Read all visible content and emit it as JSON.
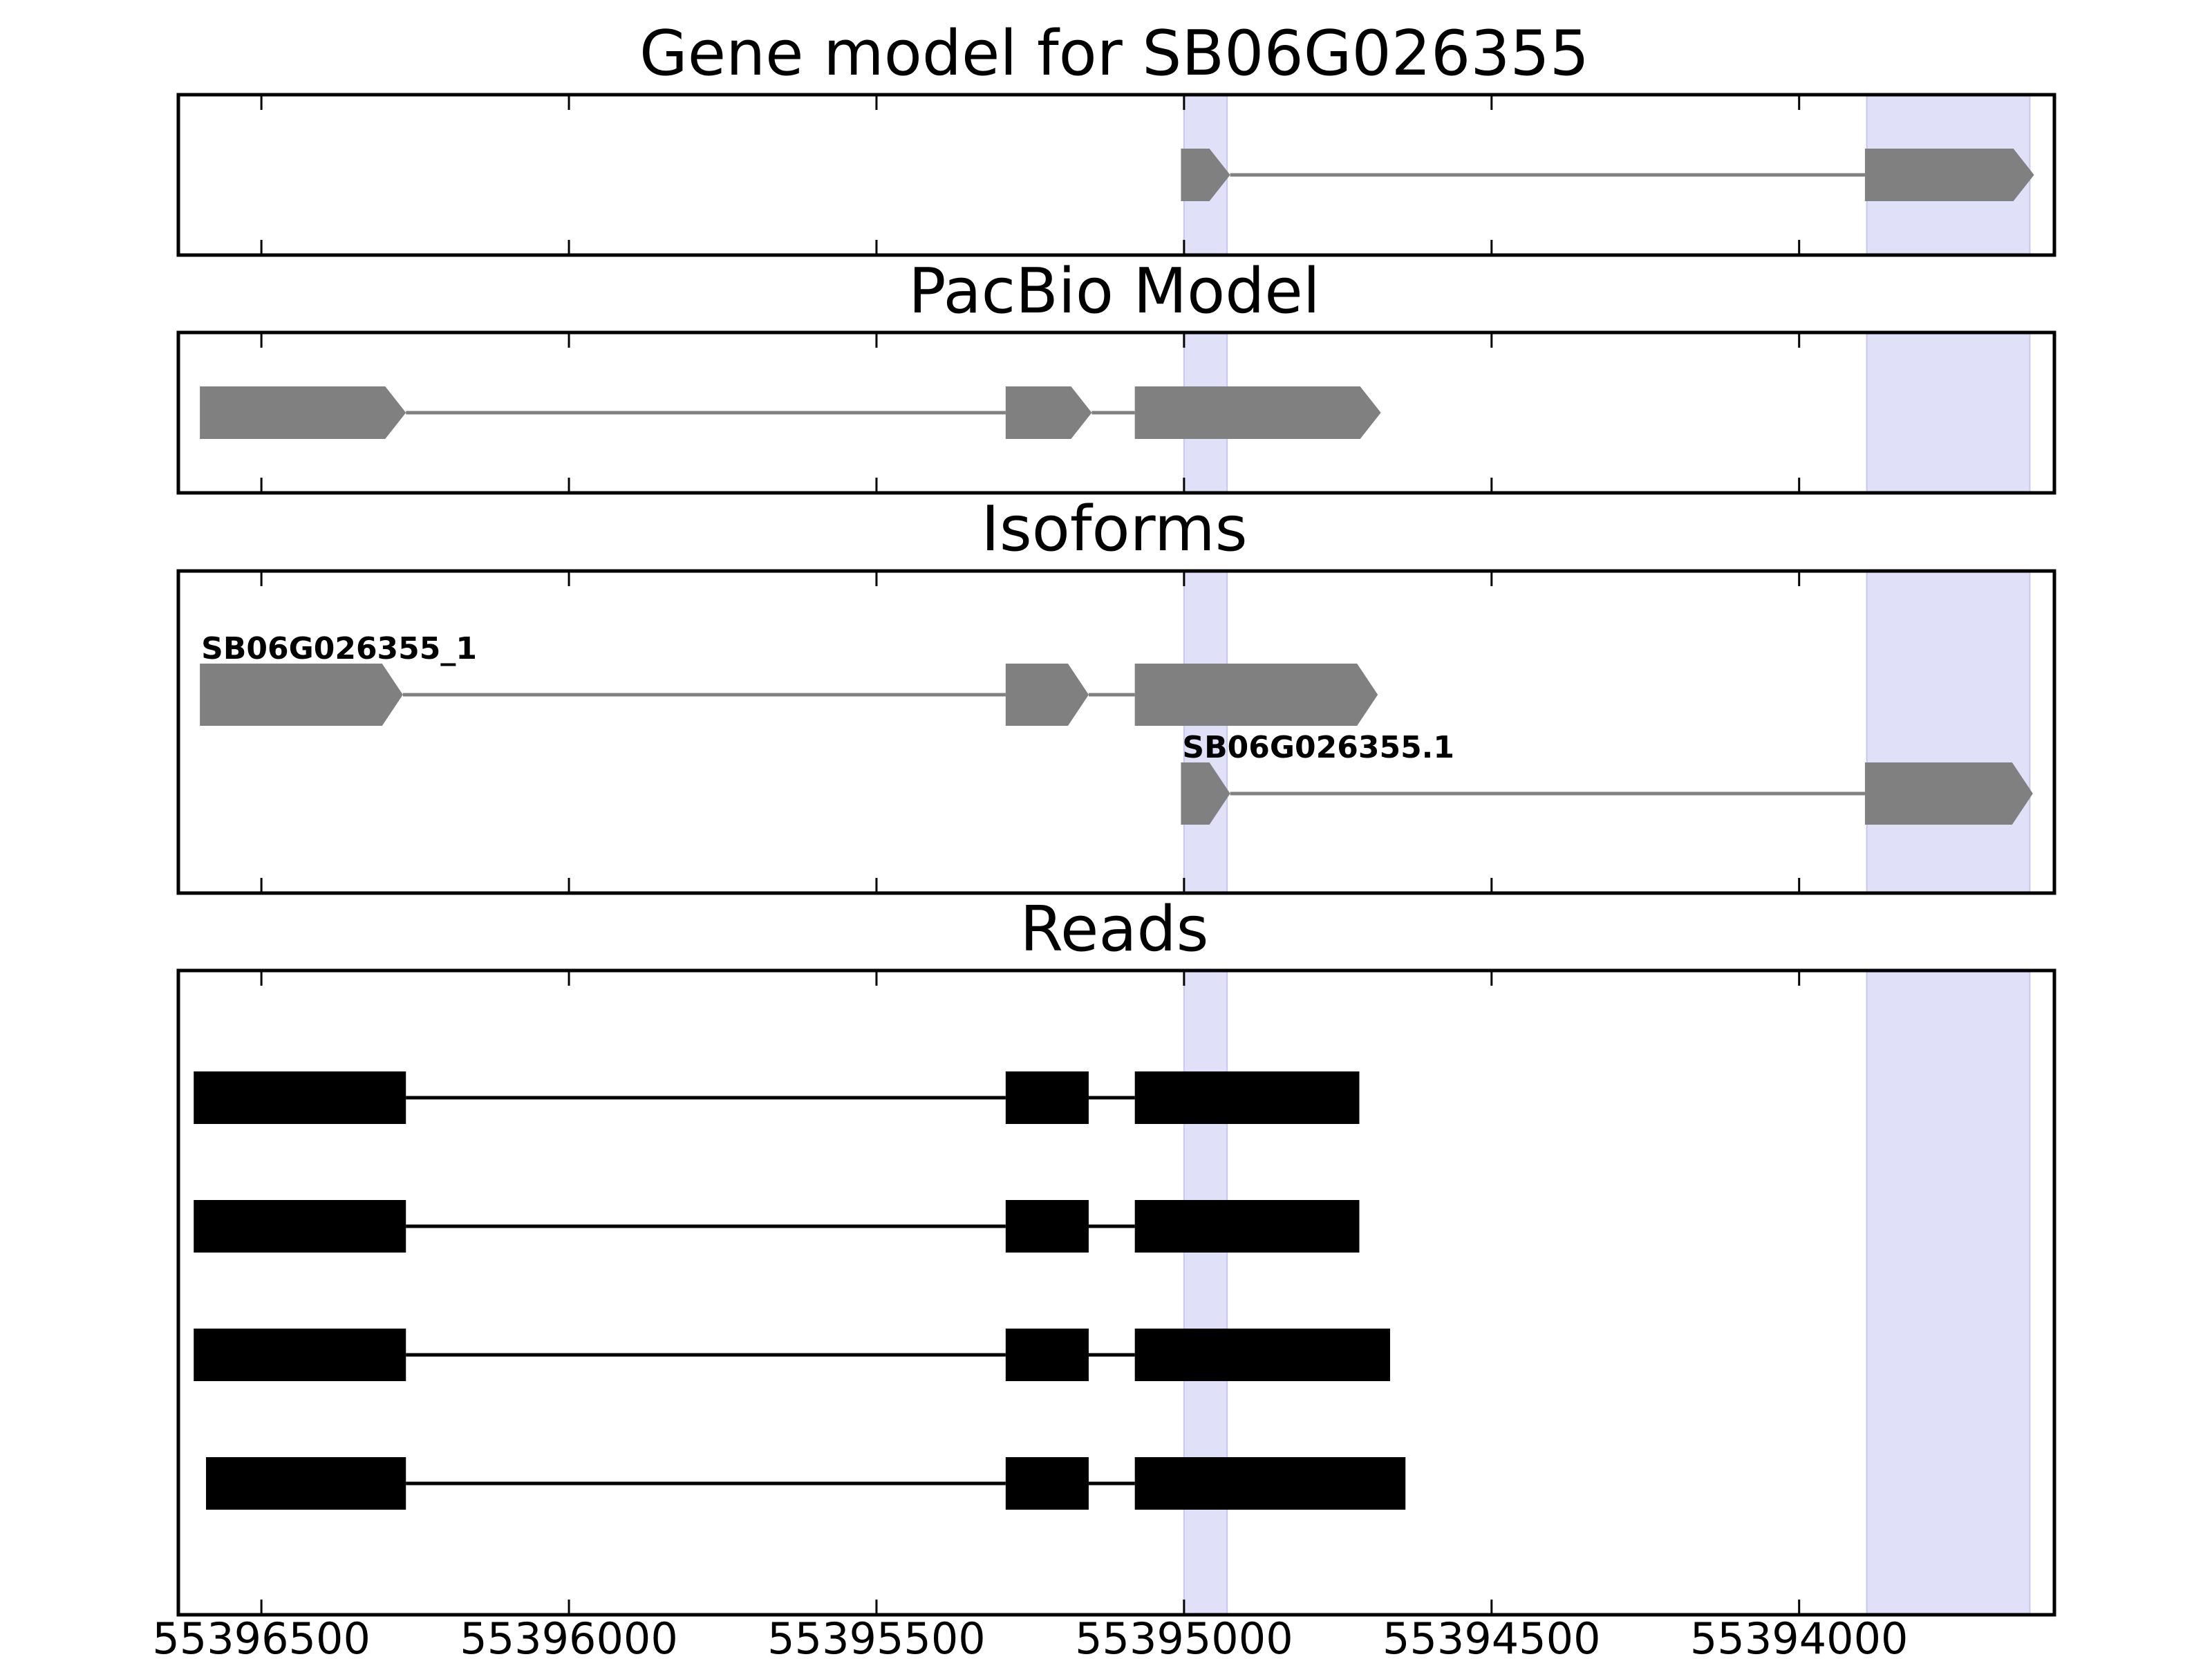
{
  "chart_data": {
    "type": "gene_structure",
    "x_axis": {
      "reversed": true,
      "range": [
        55396635,
        55393585
      ],
      "ticks": [
        55396500,
        55396000,
        55395500,
        55395000,
        55394500,
        55394000
      ],
      "tick_labels": [
        "55396500",
        "55396000",
        "55395500",
        "55395000",
        "55394500",
        "55394000"
      ]
    },
    "highlight_color": "#e0e0f8",
    "highlight_regions": [
      [
        55395000,
        55394930
      ],
      [
        55393890,
        55393625
      ]
    ],
    "feature_color": "#808080",
    "read_color": "#000000",
    "panels": [
      {
        "title": "Gene model for SB06G026355",
        "tracks": [
          {
            "label": "",
            "exons": [
              [
                55395005,
                55394925
              ],
              [
                55393893,
                55393618
              ]
            ]
          }
        ]
      },
      {
        "title": "PacBio Model",
        "tracks": [
          {
            "label": "",
            "exons": [
              [
                55396600,
                55396265
              ],
              [
                55395290,
                55395150
              ],
              [
                55395080,
                55394680
              ]
            ]
          }
        ]
      },
      {
        "title": "Isoforms",
        "tracks": [
          {
            "label": "SB06G026355_1",
            "exons": [
              [
                55396600,
                55396270
              ],
              [
                55395290,
                55395155
              ],
              [
                55395080,
                55394685
              ]
            ]
          },
          {
            "label": "SB06G026355.1",
            "exons": [
              [
                55395005,
                55394925
              ],
              [
                55393893,
                55393620
              ]
            ]
          }
        ]
      },
      {
        "title": "Reads",
        "tracks": [
          {
            "exons": [
              [
                55396610,
                55396265
              ],
              [
                55395290,
                55395155
              ],
              [
                55395080,
                55394715
              ]
            ]
          },
          {
            "exons": [
              [
                55396610,
                55396265
              ],
              [
                55395290,
                55395155
              ],
              [
                55395080,
                55394715
              ]
            ]
          },
          {
            "exons": [
              [
                55396610,
                55396265
              ],
              [
                55395290,
                55395155
              ],
              [
                55395080,
                55394665
              ]
            ]
          },
          {
            "exons": [
              [
                55396590,
                55396265
              ],
              [
                55395290,
                55395155
              ],
              [
                55395080,
                55394640
              ]
            ]
          }
        ]
      }
    ]
  }
}
